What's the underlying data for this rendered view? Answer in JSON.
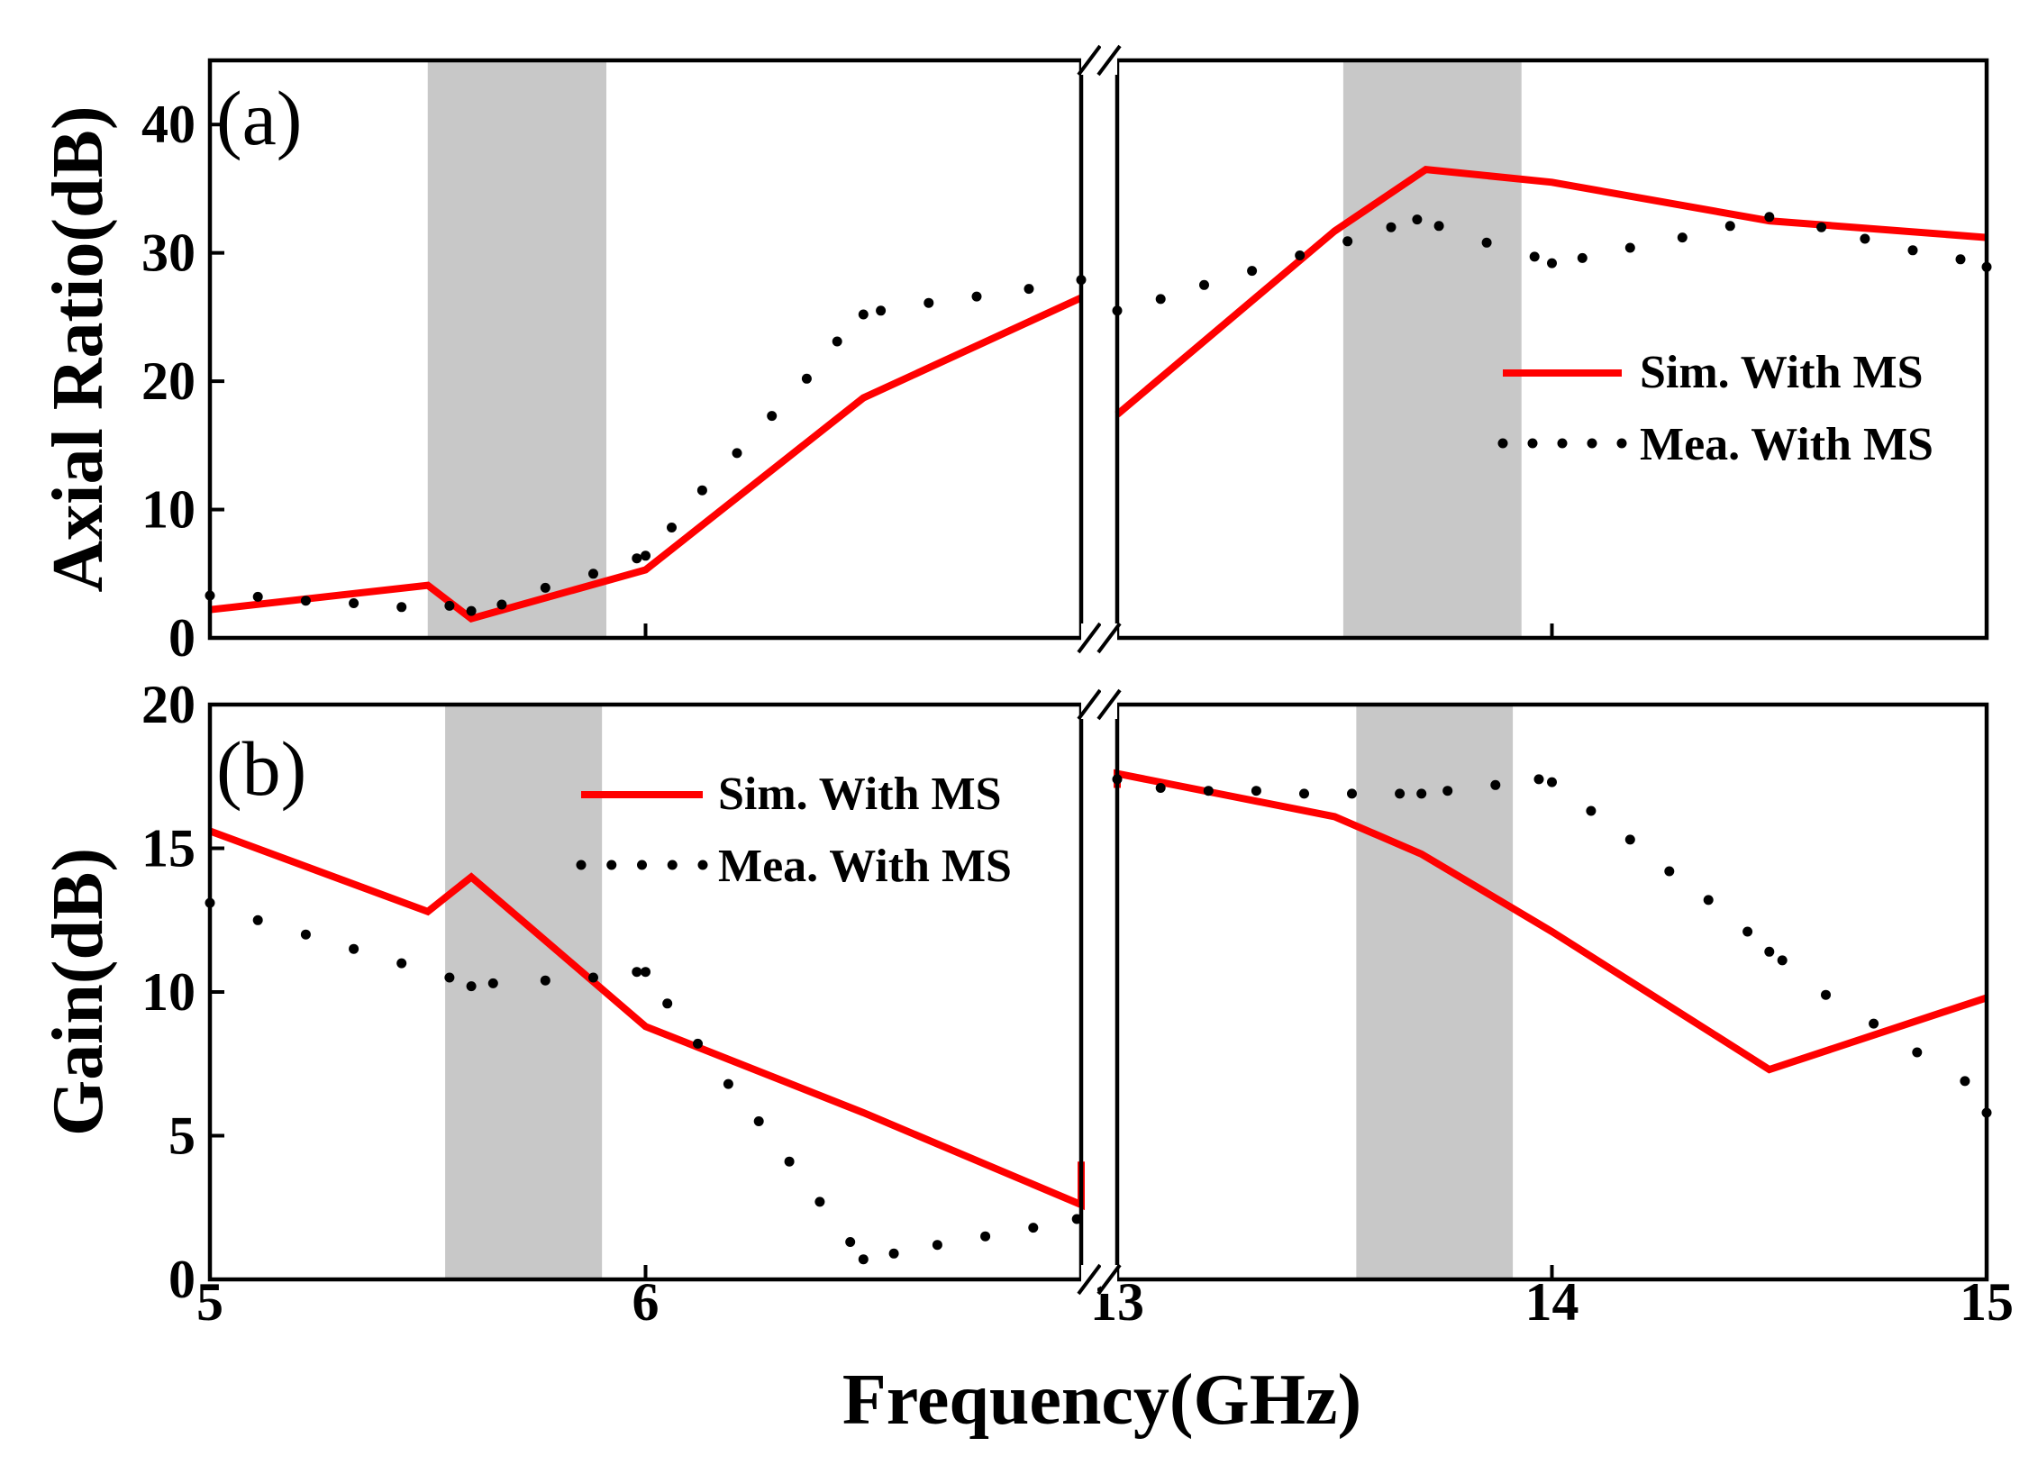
{
  "chart_data": [
    {
      "panel": "(a)",
      "type": "line",
      "ylabel": "Axial Ratio(dB)",
      "xlabel": "Frequency(GHz)",
      "ylim": [
        0,
        45
      ],
      "yticks": [
        0,
        10,
        20,
        30,
        40
      ],
      "broken_x_axis": true,
      "segments": [
        {
          "xlim": [
            5,
            7
          ],
          "xticks": [
            5,
            6
          ],
          "shaded_band": [
            5.5,
            5.91
          ]
        },
        {
          "xlim": [
            13,
            15
          ],
          "xticks": [
            13,
            14,
            15
          ],
          "shaded_band": [
            13.52,
            13.93
          ]
        }
      ],
      "series": [
        {
          "name": "Sim. With MS",
          "style": "solid",
          "color": "#ff0000",
          "segments": [
            [
              [
                5,
                2.2
              ],
              [
                5.5,
                4.1
              ],
              [
                5.6,
                1.5
              ],
              [
                6.0,
                5.3
              ],
              [
                6.5,
                18.7
              ],
              [
                7.0,
                26.5
              ]
            ],
            [
              [
                13.0,
                17.4
              ],
              [
                13.5,
                31.7
              ],
              [
                13.71,
                36.5
              ],
              [
                14.0,
                35.5
              ],
              [
                14.5,
                32.5
              ],
              [
                15.0,
                31.2
              ]
            ]
          ]
        },
        {
          "name": "Mea. With MS",
          "style": "dotted",
          "color": "#000000",
          "segments": [
            [
              [
                5.0,
                3.3
              ],
              [
                5.11,
                3.2
              ],
              [
                5.22,
                2.9
              ],
              [
                5.33,
                2.7
              ],
              [
                5.44,
                2.4
              ],
              [
                5.55,
                2.5
              ],
              [
                5.6,
                2.1
              ],
              [
                5.67,
                2.6
              ],
              [
                5.77,
                3.9
              ],
              [
                5.88,
                5.0
              ],
              [
                5.98,
                6.2
              ],
              [
                6.0,
                6.4
              ],
              [
                6.06,
                8.6
              ],
              [
                6.13,
                11.5
              ],
              [
                6.21,
                14.4
              ],
              [
                6.29,
                17.3
              ],
              [
                6.37,
                20.2
              ],
              [
                6.44,
                23.1
              ],
              [
                6.5,
                25.2
              ],
              [
                6.54,
                25.5
              ],
              [
                6.65,
                26.1
              ],
              [
                6.76,
                26.6
              ],
              [
                6.88,
                27.2
              ],
              [
                7.0,
                27.9
              ]
            ],
            [
              [
                13.0,
                25.5
              ],
              [
                13.1,
                26.4
              ],
              [
                13.2,
                27.5
              ],
              [
                13.31,
                28.6
              ],
              [
                13.42,
                29.8
              ],
              [
                13.53,
                30.9
              ],
              [
                13.63,
                32.0
              ],
              [
                13.69,
                32.6
              ],
              [
                13.74,
                32.1
              ],
              [
                13.85,
                30.8
              ],
              [
                13.96,
                29.7
              ],
              [
                14.0,
                29.2
              ],
              [
                14.07,
                29.6
              ],
              [
                14.18,
                30.4
              ],
              [
                14.3,
                31.2
              ],
              [
                14.41,
                32.1
              ],
              [
                14.5,
                32.8
              ],
              [
                14.62,
                32.0
              ],
              [
                14.72,
                31.1
              ],
              [
                14.83,
                30.2
              ],
              [
                14.94,
                29.5
              ],
              [
                15.0,
                28.9
              ]
            ]
          ]
        }
      ],
      "legend": {
        "position": "right",
        "entries": [
          "Sim. With MS",
          "Mea. With MS"
        ]
      }
    },
    {
      "panel": "(b)",
      "type": "line",
      "ylabel": "Gain(dB)",
      "xlabel": "Frequency(GHz)",
      "ylim": [
        0,
        20
      ],
      "yticks": [
        0,
        5,
        10,
        15,
        20
      ],
      "broken_x_axis": true,
      "segments": [
        {
          "xlim": [
            5,
            7
          ],
          "xticks": [
            5,
            6
          ],
          "shaded_band": [
            5.54,
            5.9
          ]
        },
        {
          "xlim": [
            13,
            15
          ],
          "xticks": [
            13,
            14,
            15
          ],
          "shaded_band": [
            13.55,
            13.91
          ]
        }
      ],
      "series": [
        {
          "name": "Sim. With MS",
          "style": "solid",
          "color": "#ff0000",
          "segments": [
            [
              [
                5.0,
                15.6
              ],
              [
                5.5,
                12.8
              ],
              [
                5.6,
                14.0
              ],
              [
                6.0,
                8.8
              ],
              [
                6.5,
                5.8
              ],
              [
                7.0,
                2.6
              ],
              [
                7.0,
                4.1
              ]
            ],
            [
              [
                13.0,
                17.1
              ],
              [
                13.0,
                17.6
              ],
              [
                13.5,
                16.1
              ],
              [
                13.7,
                14.8
              ],
              [
                14.0,
                12.1
              ],
              [
                14.5,
                7.3
              ],
              [
                15.0,
                9.8
              ]
            ]
          ]
        },
        {
          "name": "Mea. With MS",
          "style": "dotted",
          "color": "#000000",
          "segments": [
            [
              [
                5.0,
                13.1
              ],
              [
                5.11,
                12.5
              ],
              [
                5.22,
                12.0
              ],
              [
                5.33,
                11.5
              ],
              [
                5.44,
                11.0
              ],
              [
                5.55,
                10.5
              ],
              [
                5.6,
                10.2
              ],
              [
                5.65,
                10.3
              ],
              [
                5.77,
                10.4
              ],
              [
                5.88,
                10.5
              ],
              [
                5.98,
                10.7
              ],
              [
                6.0,
                10.7
              ],
              [
                6.05,
                9.6
              ],
              [
                6.12,
                8.2
              ],
              [
                6.19,
                6.8
              ],
              [
                6.26,
                5.5
              ],
              [
                6.33,
                4.1
              ],
              [
                6.4,
                2.7
              ],
              [
                6.47,
                1.3
              ],
              [
                6.5,
                0.7
              ],
              [
                6.57,
                0.9
              ],
              [
                6.67,
                1.2
              ],
              [
                6.78,
                1.5
              ],
              [
                6.89,
                1.8
              ],
              [
                6.99,
                2.1
              ]
            ],
            [
              [
                13.0,
                17.4
              ],
              [
                13.1,
                17.1
              ],
              [
                13.21,
                17.0
              ],
              [
                13.32,
                17.0
              ],
              [
                13.43,
                16.9
              ],
              [
                13.54,
                16.9
              ],
              [
                13.65,
                16.9
              ],
              [
                13.7,
                16.9
              ],
              [
                13.76,
                17.0
              ],
              [
                13.87,
                17.2
              ],
              [
                13.97,
                17.4
              ],
              [
                14.0,
                17.3
              ],
              [
                14.09,
                16.3
              ],
              [
                14.18,
                15.3
              ],
              [
                14.27,
                14.2
              ],
              [
                14.36,
                13.2
              ],
              [
                14.45,
                12.1
              ],
              [
                14.5,
                11.4
              ],
              [
                14.53,
                11.1
              ],
              [
                14.63,
                9.9
              ],
              [
                14.74,
                8.9
              ],
              [
                14.84,
                7.9
              ],
              [
                14.95,
                6.9
              ],
              [
                15.0,
                5.8
              ]
            ]
          ]
        }
      ],
      "legend": {
        "position": "top-center",
        "entries": [
          "Sim. With MS",
          "Mea. With MS"
        ]
      }
    }
  ]
}
